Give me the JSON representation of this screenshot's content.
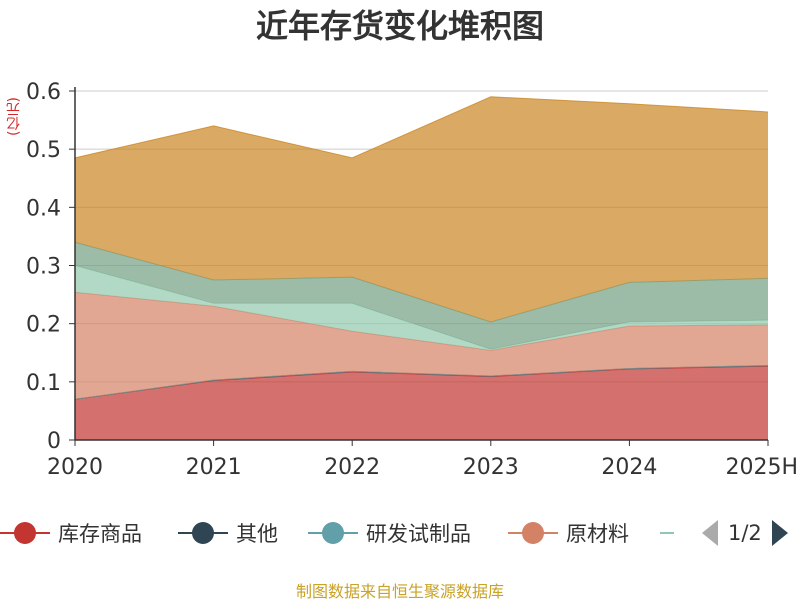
{
  "chart_data": {
    "type": "area",
    "stacked": true,
    "title": "近年存货变化堆积图",
    "ylabel": "(亿元)",
    "categories": [
      "2020",
      "2021",
      "2022",
      "2023",
      "2024",
      "2025H"
    ],
    "ylim": [
      0,
      0.6
    ],
    "yticks": [
      0,
      0.1,
      0.2,
      0.3,
      0.4,
      0.5,
      0.6
    ],
    "ytick_labels": [
      "0",
      "0.1",
      "0.2",
      "0.3",
      "0.4",
      "0.5",
      "0.6"
    ],
    "grid": true,
    "legend_position": "bottom",
    "series": [
      {
        "name": "库存商品",
        "color": "#c23531",
        "values": [
          0.07,
          0.102,
          0.117,
          0.109,
          0.122,
          0.127
        ]
      },
      {
        "name": "其他",
        "color": "#2f4554",
        "values": [
          0.0,
          0.001,
          0.001,
          0.001,
          0.001,
          0.001
        ]
      },
      {
        "name": "研发试制品",
        "color": "#61a0a8",
        "values": [
          0.0,
          0.0,
          0.0,
          0.0,
          0.0,
          0.0
        ]
      },
      {
        "name": "原材料",
        "color": "#d48265",
        "values": [
          0.184,
          0.127,
          0.069,
          0.044,
          0.073,
          0.07
        ]
      },
      {
        "name": "",
        "color": "#91c7ae",
        "values": [
          0.046,
          0.005,
          0.048,
          0.002,
          0.007,
          0.008
        ]
      },
      {
        "name": "",
        "color": "#749f83",
        "values": [
          0.04,
          0.04,
          0.045,
          0.047,
          0.068,
          0.072
        ]
      },
      {
        "name": "",
        "color": "#ca8622",
        "values": [
          0.145,
          0.265,
          0.205,
          0.387,
          0.307,
          0.286
        ]
      }
    ]
  },
  "legend": {
    "visible_items": [
      {
        "label": "库存商品",
        "color": "#c23531"
      },
      {
        "label": "其他",
        "color": "#2f4554"
      },
      {
        "label": "研发试制品",
        "color": "#61a0a8"
      },
      {
        "label": "原材料",
        "color": "#d48265"
      },
      {
        "label": "",
        "color": "#91c7ae"
      }
    ],
    "page_indicator": "1/2"
  },
  "source_note": "制图数据来自恒生聚源数据库"
}
